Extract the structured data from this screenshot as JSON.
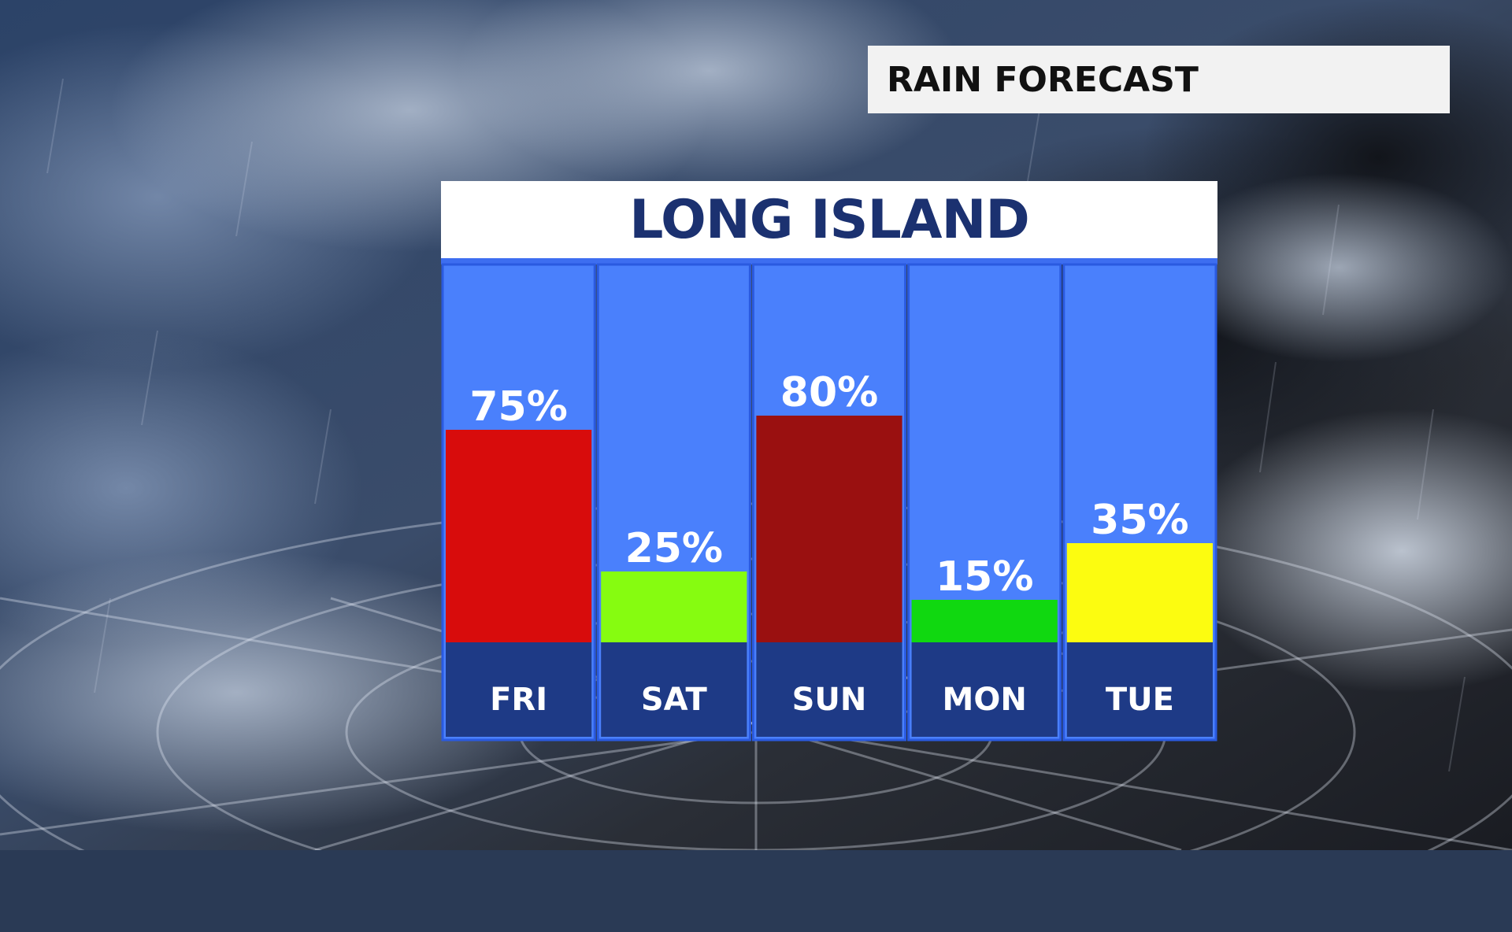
{
  "header": {
    "title": "RAIN FORECAST"
  },
  "panel": {
    "title": "LONG ISLAND"
  },
  "colors": {
    "column_bg": "#4a80fc",
    "day_bg": "#1e3a86",
    "column_border": "#2a5ae0",
    "title_text": "#1b3170"
  },
  "chart_data": {
    "type": "bar",
    "title": "LONG ISLAND",
    "xlabel": "",
    "ylabel": "",
    "ylim": [
      0,
      100
    ],
    "unit": "%",
    "grid": false,
    "categories": [
      "FRI",
      "SAT",
      "SUN",
      "MON",
      "TUE"
    ],
    "values": [
      75,
      25,
      80,
      15,
      35
    ],
    "value_labels": [
      "75%",
      "25%",
      "80%",
      "15%",
      "35%"
    ],
    "bar_colors": [
      "#d80c0c",
      "#86fc10",
      "#9a1010",
      "#10d810",
      "#fcfc10"
    ]
  }
}
